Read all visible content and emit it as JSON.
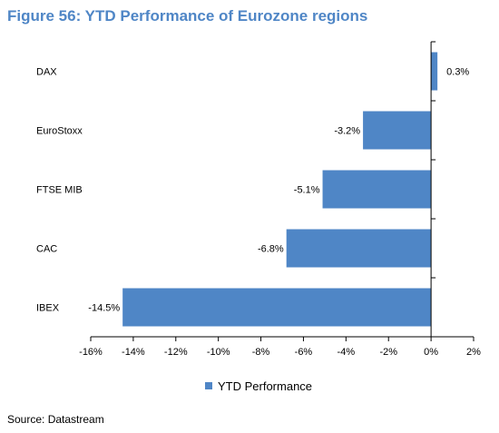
{
  "title": "Figure 56: YTD Performance of Eurozone regions",
  "source": "Source: Datastream",
  "chart_data": {
    "type": "bar",
    "orientation": "horizontal",
    "categories": [
      "DAX",
      "EuroStoxx",
      "FTSE MIB",
      "CAC",
      "IBEX"
    ],
    "series": [
      {
        "name": "YTD Performance",
        "values": [
          0.3,
          -3.2,
          -5.1,
          -6.8,
          -14.5
        ],
        "color": "#4f86c6"
      }
    ],
    "data_labels": [
      "0.3%",
      "-3.2%",
      "-5.1%",
      "-6.8%",
      "-14.5%"
    ],
    "xlim": [
      -16,
      2
    ],
    "xticks": [
      -16,
      -14,
      -12,
      -10,
      -8,
      -6,
      -4,
      -2,
      0,
      2
    ],
    "xtick_labels": [
      "-16%",
      "-14%",
      "-12%",
      "-10%",
      "-8%",
      "-6%",
      "-4%",
      "-2%",
      "0%",
      "2%"
    ],
    "grid": false,
    "legend_position": "bottom"
  }
}
